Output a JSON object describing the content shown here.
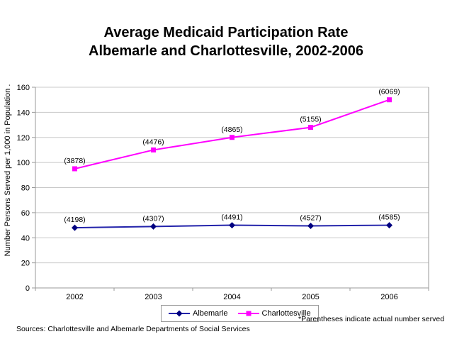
{
  "title": {
    "line1": "Average Medicaid Participation Rate",
    "line2": "Albemarle and Charlottesville, 2002-2006"
  },
  "chart_data": {
    "type": "line",
    "categories": [
      "2002",
      "2003",
      "2004",
      "2005",
      "2006"
    ],
    "series": [
      {
        "name": "Albemarle",
        "color": "#2222aa",
        "marker_color": "#000080",
        "marker": "diamond",
        "values": [
          48,
          49,
          50,
          49.5,
          50
        ],
        "point_labels": [
          "(4198)",
          "(4307)",
          "(4491)",
          "(4527)",
          "(4585)"
        ]
      },
      {
        "name": "Charlottesville",
        "color": "#ff00ff",
        "marker_color": "#ff00ff",
        "marker": "square",
        "values": [
          95,
          110,
          120,
          128,
          150
        ],
        "point_labels": [
          "(3878)",
          "(4476)",
          "(4865)",
          "(5155)",
          "(6069)"
        ]
      }
    ],
    "xlabel": "",
    "ylabel": "Number Persons Served per 1,000 in Population  .",
    "ylim": [
      0,
      160
    ],
    "ytick_step": 20,
    "grid": true,
    "legend_position": "bottom"
  },
  "notes": {
    "parentheses_note": "*Parentheses indicate actual number served",
    "sources": "Sources: Charlottesville and Albemarle Departments of Social Services"
  },
  "colors": {
    "albemarle": "#000080",
    "charlottesville": "#ff00ff",
    "gridline": "#c8c8c8",
    "axis": "#9a9a9a",
    "text": "#000000"
  }
}
